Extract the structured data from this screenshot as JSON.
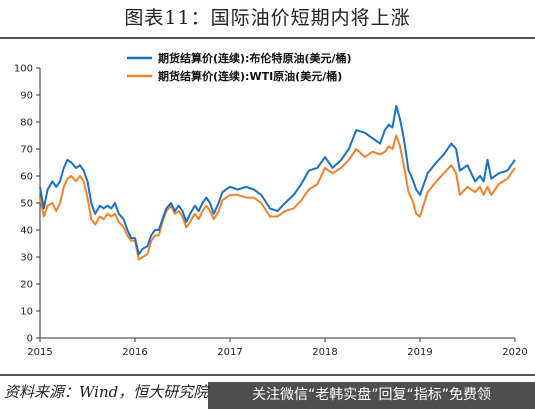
{
  "figure": {
    "title": "图表11：国际油价短期内将上涨",
    "source": "资料来源：Wind，恒大研究院",
    "banner": "关注微信“老韩实盘”回复“指标”免费领"
  },
  "colors": {
    "brent": "#1f6fc1",
    "wti": "#f0822f",
    "axis": "#333333"
  },
  "chart_data": {
    "type": "line",
    "title": "",
    "xlabel": "",
    "ylabel": "",
    "ylim": [
      0,
      100
    ],
    "yticks": [
      0,
      10,
      20,
      30,
      40,
      50,
      60,
      70,
      80,
      90,
      100
    ],
    "xlim": [
      2015,
      2020
    ],
    "xticks": [
      "2015",
      "2016",
      "2017",
      "2018",
      "2019",
      "2020"
    ],
    "legend": "top-center",
    "grid": false,
    "series": [
      {
        "name": "期货结算价(连续):布伦特原油(美元/桶)",
        "x": [
          2015.0,
          2015.04,
          2015.08,
          2015.13,
          2015.17,
          2015.21,
          2015.25,
          2015.29,
          2015.33,
          2015.38,
          2015.42,
          2015.46,
          2015.5,
          2015.54,
          2015.58,
          2015.63,
          2015.67,
          2015.71,
          2015.75,
          2015.79,
          2015.83,
          2015.88,
          2015.92,
          2015.96,
          2016.0,
          2016.04,
          2016.08,
          2016.13,
          2016.17,
          2016.21,
          2016.25,
          2016.29,
          2016.33,
          2016.38,
          2016.42,
          2016.46,
          2016.5,
          2016.54,
          2016.58,
          2016.63,
          2016.67,
          2016.71,
          2016.75,
          2016.79,
          2016.83,
          2016.88,
          2016.92,
          2016.96,
          2017.0,
          2017.08,
          2017.17,
          2017.25,
          2017.33,
          2017.42,
          2017.5,
          2017.58,
          2017.67,
          2017.75,
          2017.83,
          2017.92,
          2018.0,
          2018.08,
          2018.17,
          2018.25,
          2018.33,
          2018.42,
          2018.5,
          2018.58,
          2018.63,
          2018.67,
          2018.71,
          2018.75,
          2018.79,
          2018.83,
          2018.88,
          2018.92,
          2018.96,
          2019.0,
          2019.08,
          2019.17,
          2019.25,
          2019.33,
          2019.38,
          2019.42,
          2019.5,
          2019.58,
          2019.63,
          2019.67,
          2019.71,
          2019.75,
          2019.83,
          2019.92,
          2020.0
        ],
        "values": [
          56,
          48,
          55,
          58,
          56,
          58,
          63,
          66,
          65,
          63,
          64,
          62,
          58,
          50,
          46,
          49,
          48,
          49,
          48,
          50,
          46,
          44,
          40,
          37,
          37,
          31,
          33,
          34,
          38,
          40,
          40,
          44,
          48,
          50,
          47,
          49,
          47,
          43,
          46,
          49,
          47,
          50,
          52,
          50,
          46,
          50,
          54,
          55,
          56,
          55,
          56,
          55,
          53,
          48,
          47,
          50,
          53,
          57,
          62,
          63,
          67,
          63,
          66,
          70,
          77,
          76,
          74,
          72,
          77,
          79,
          78,
          86,
          81,
          74,
          62,
          59,
          55,
          53,
          61,
          65,
          68,
          72,
          70,
          62,
          64,
          58,
          60,
          58,
          66,
          59,
          61,
          62,
          66
        ],
        "_legend_y": 0
      },
      {
        "name": "期货结算价(连续):WTI原油(美元/桶)",
        "x": [
          2015.0,
          2015.04,
          2015.08,
          2015.13,
          2015.17,
          2015.21,
          2015.25,
          2015.29,
          2015.33,
          2015.38,
          2015.42,
          2015.46,
          2015.5,
          2015.54,
          2015.58,
          2015.63,
          2015.67,
          2015.71,
          2015.75,
          2015.79,
          2015.83,
          2015.88,
          2015.92,
          2015.96,
          2016.0,
          2016.04,
          2016.08,
          2016.13,
          2016.17,
          2016.21,
          2016.25,
          2016.29,
          2016.33,
          2016.38,
          2016.42,
          2016.46,
          2016.5,
          2016.54,
          2016.58,
          2016.63,
          2016.67,
          2016.71,
          2016.75,
          2016.79,
          2016.83,
          2016.88,
          2016.92,
          2016.96,
          2017.0,
          2017.08,
          2017.17,
          2017.25,
          2017.33,
          2017.42,
          2017.5,
          2017.58,
          2017.67,
          2017.75,
          2017.83,
          2017.92,
          2018.0,
          2018.08,
          2018.17,
          2018.25,
          2018.33,
          2018.42,
          2018.5,
          2018.58,
          2018.63,
          2018.67,
          2018.71,
          2018.75,
          2018.79,
          2018.83,
          2018.88,
          2018.92,
          2018.96,
          2019.0,
          2019.08,
          2019.17,
          2019.25,
          2019.33,
          2019.38,
          2019.42,
          2019.5,
          2019.58,
          2019.63,
          2019.67,
          2019.71,
          2019.75,
          2019.83,
          2019.92,
          2020.0
        ],
        "values": [
          52,
          45,
          49,
          50,
          47,
          50,
          56,
          59,
          60,
          58,
          60,
          58,
          52,
          44,
          42,
          45,
          44,
          46,
          45,
          46,
          43,
          41,
          38,
          36,
          36,
          29,
          30,
          31,
          36,
          38,
          38,
          43,
          47,
          49,
          46,
          47,
          45,
          41,
          43,
          46,
          44,
          47,
          49,
          47,
          44,
          47,
          51,
          52,
          53,
          53,
          52,
          52,
          50,
          45,
          45,
          47,
          48,
          51,
          55,
          57,
          63,
          61,
          63,
          66,
          70,
          67,
          69,
          68,
          69,
          71,
          70,
          75,
          71,
          64,
          54,
          51,
          46,
          45,
          54,
          58,
          61,
          64,
          61,
          53,
          56,
          54,
          56,
          53,
          56,
          53,
          57,
          59,
          63
        ]
      }
    ]
  }
}
